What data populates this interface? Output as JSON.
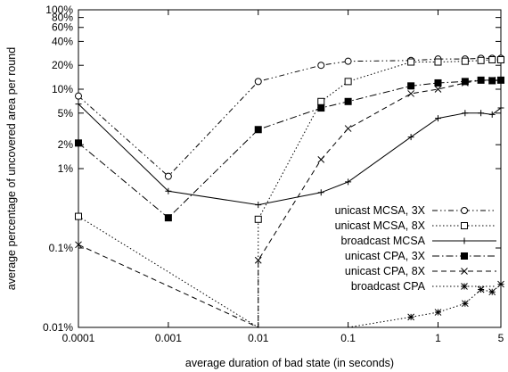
{
  "chart_data": {
    "type": "line",
    "title": "",
    "xlabel": "average duration of bad state (in seconds)",
    "ylabel": "average percentage of uncovered area per round",
    "x_scale": "log",
    "y_scale": "log",
    "xlim": [
      0.0001,
      5
    ],
    "ylim": [
      0.01,
      100
    ],
    "x_ticks": [
      {
        "value": 0.0001,
        "label": "0.0001"
      },
      {
        "value": 0.001,
        "label": "0.001"
      },
      {
        "value": 0.01,
        "label": "0.01"
      },
      {
        "value": 0.1,
        "label": "0.1"
      },
      {
        "value": 1,
        "label": "1"
      },
      {
        "value": 5,
        "label": "5"
      }
    ],
    "y_ticks": [
      {
        "value": 0.01,
        "label": "0.01%"
      },
      {
        "value": 0.1,
        "label": "0.1%"
      },
      {
        "value": 1,
        "label": "1%"
      },
      {
        "value": 2,
        "label": "2%"
      },
      {
        "value": 5,
        "label": "5%"
      },
      {
        "value": 10,
        "label": "10%"
      },
      {
        "value": 20,
        "label": "20%"
      },
      {
        "value": 40,
        "label": "40%"
      },
      {
        "value": 60,
        "label": "60%"
      },
      {
        "value": 80,
        "label": "80%"
      },
      {
        "value": 100,
        "label": "100%"
      }
    ],
    "grid": false,
    "legend_position": "bottom-right, inside",
    "series": [
      {
        "name": "unicast MCSA, 3X",
        "marker": "open-circle",
        "dash": "dash-dot-dot",
        "x": [
          0.0001,
          0.001,
          0.01,
          0.05,
          0.1,
          0.5,
          1,
          2,
          3,
          4,
          5
        ],
        "y": [
          8.2,
          0.8,
          12.5,
          20,
          22.5,
          23,
          24,
          24,
          24.5,
          24.5,
          24.5
        ]
      },
      {
        "name": "unicast MCSA, 8X",
        "marker": "open-square",
        "dash": "dotted",
        "x": [
          0.0001,
          0.01,
          0.01,
          0.05,
          0.1,
          0.5,
          1,
          2,
          3,
          4,
          5
        ],
        "y": [
          0.25,
          0.01,
          0.23,
          7,
          12.5,
          22,
          22,
          22.5,
          23,
          23.5,
          23.5
        ]
      },
      {
        "name": "broadcast MCSA",
        "marker": "plus",
        "dash": "solid",
        "x": [
          0.0001,
          0.001,
          0.01,
          0.05,
          0.1,
          0.5,
          1,
          2,
          3,
          4,
          5
        ],
        "y": [
          6.5,
          0.52,
          0.35,
          0.5,
          0.68,
          2.5,
          4.3,
          5,
          5,
          4.8,
          5.8
        ]
      },
      {
        "name": "unicast CPA, 3X",
        "marker": "filled-square",
        "dash": "dash-dot",
        "x": [
          0.0001,
          0.001,
          0.01,
          0.05,
          0.1,
          0.5,
          1,
          2,
          3,
          4,
          5
        ],
        "y": [
          2.1,
          0.24,
          3.1,
          5.8,
          7,
          11,
          12,
          12.5,
          13,
          12.8,
          13
        ]
      },
      {
        "name": "unicast CPA, 8X",
        "marker": "cross",
        "dash": "dashed",
        "x": [
          0.0001,
          0.01,
          0.01,
          0.05,
          0.1,
          0.5,
          1,
          2,
          3,
          4,
          5
        ],
        "y": [
          0.11,
          0.01,
          0.07,
          1.3,
          3.2,
          8.8,
          10,
          12,
          13,
          13,
          13
        ]
      },
      {
        "name": "broadcast CPA",
        "marker": "asterisk",
        "dash": "dotted",
        "x": [
          0.1,
          0.5,
          1,
          2,
          3,
          4,
          5
        ],
        "y": [
          0.01,
          0.0135,
          0.0155,
          0.02,
          0.03,
          0.028,
          0.035
        ]
      }
    ]
  }
}
